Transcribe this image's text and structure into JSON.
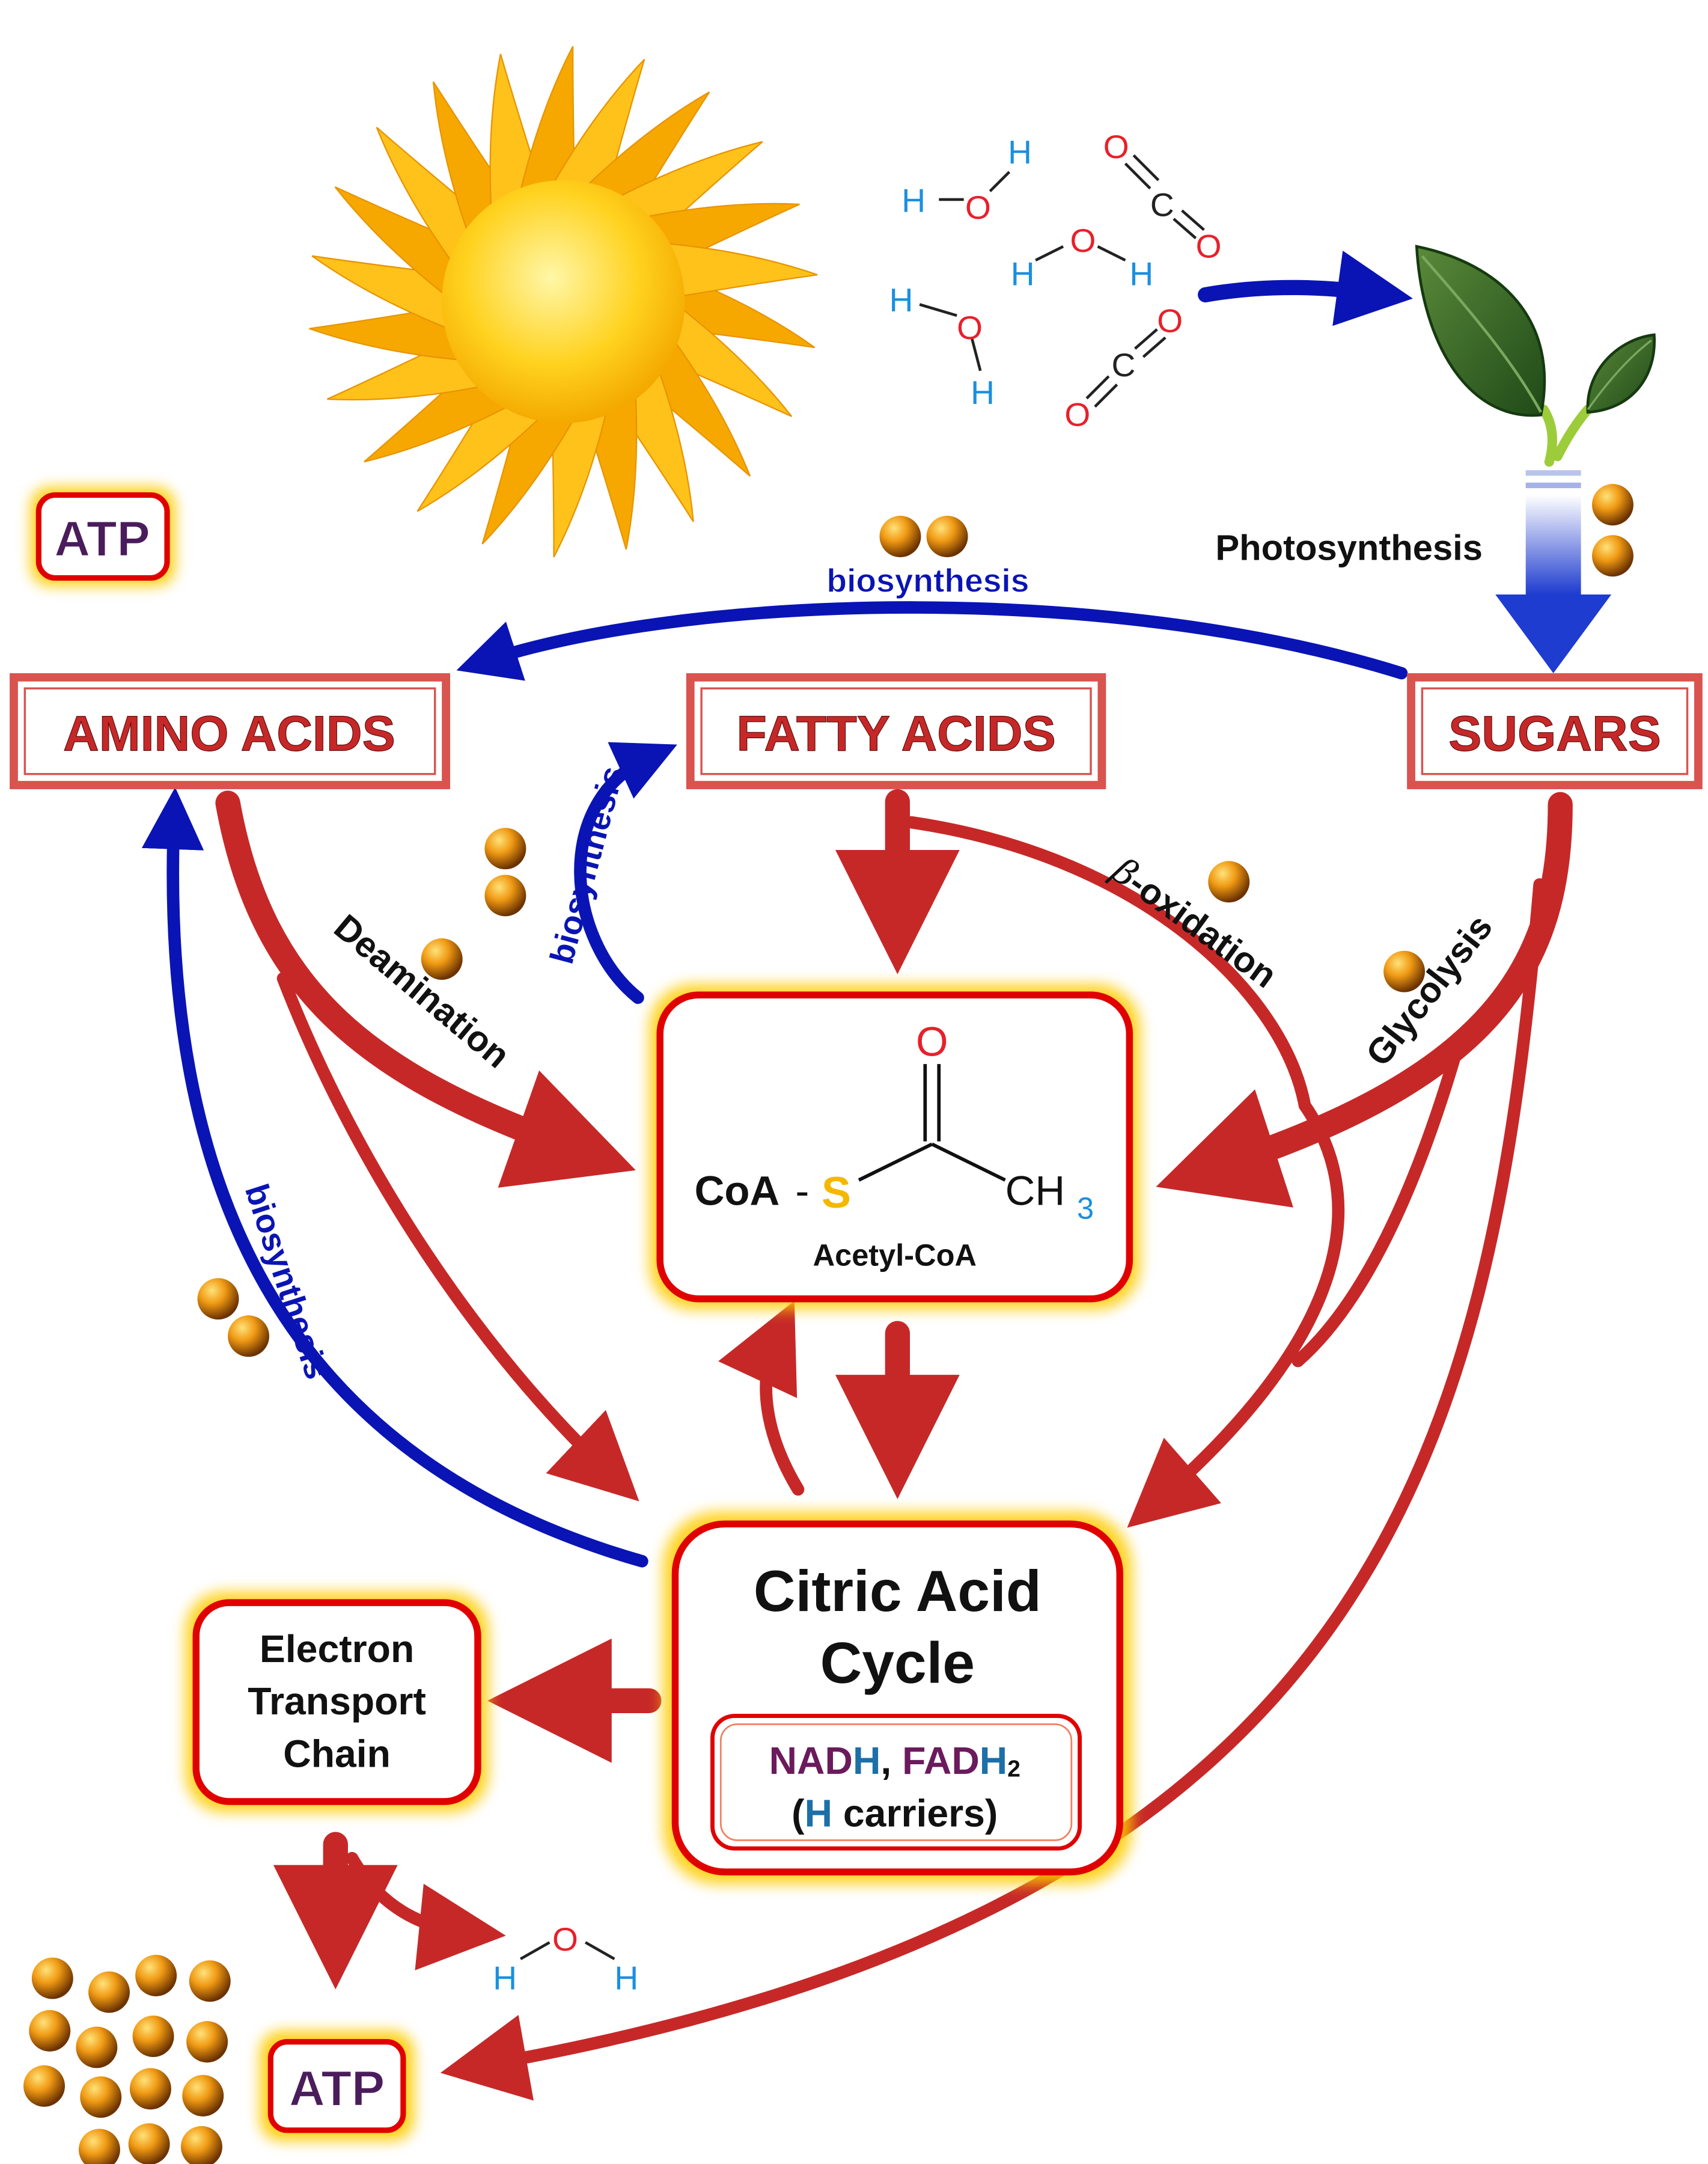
{
  "legend": {
    "atp_label": "ATP"
  },
  "boxes": {
    "amino_acids": "AMINO ACIDS",
    "fatty_acids": "FATTY ACIDS",
    "sugars": "SUGARS",
    "acetyl_coa": {
      "coa": "CoA",
      "dash": "-",
      "s": "S",
      "o": "O",
      "ch": "CH",
      "h_sub": "3",
      "name": "Acetyl-CoA"
    },
    "citric_acid": {
      "line1": "Citric Acid",
      "line2": "Cycle"
    },
    "carriers": {
      "nadh_n": "NAD",
      "nadh_h": "H",
      "comma": ", ",
      "fadh_f": "FAD",
      "fadh_h": "H",
      "fadh_sub": "2",
      "open": "(",
      "h": "H",
      "rest": " carriers)"
    },
    "etc": {
      "line1": "Electron",
      "line2": "Transport",
      "line3": "Chain"
    },
    "atp_out": "ATP"
  },
  "labels": {
    "photosynthesis": "Photosynthesis",
    "biosynthesis_top": "biosynthesis",
    "biosynthesis_fatty": "biosynthesis",
    "biosynthesis_left": "biosynthesis",
    "deamination": "Deamination",
    "beta": "β",
    "oxidation": "-oxidation",
    "glycolysis": "Glycolysis"
  },
  "molecules": {
    "h": "H",
    "o": "O",
    "c": "C"
  },
  "colors": {
    "metabolic_red": "#c62828",
    "biosynthesis_blue": "#0a14b4",
    "box_border": "#d9534f",
    "glow": "#ffcc00",
    "water_h": "#1a8fe0",
    "oxygen": "#e8202a",
    "sulfur": "#f5b800",
    "atp_text": "#4a1c5c",
    "nadh_color": "#6b1a5c",
    "h_color": "#1d6fa8"
  }
}
